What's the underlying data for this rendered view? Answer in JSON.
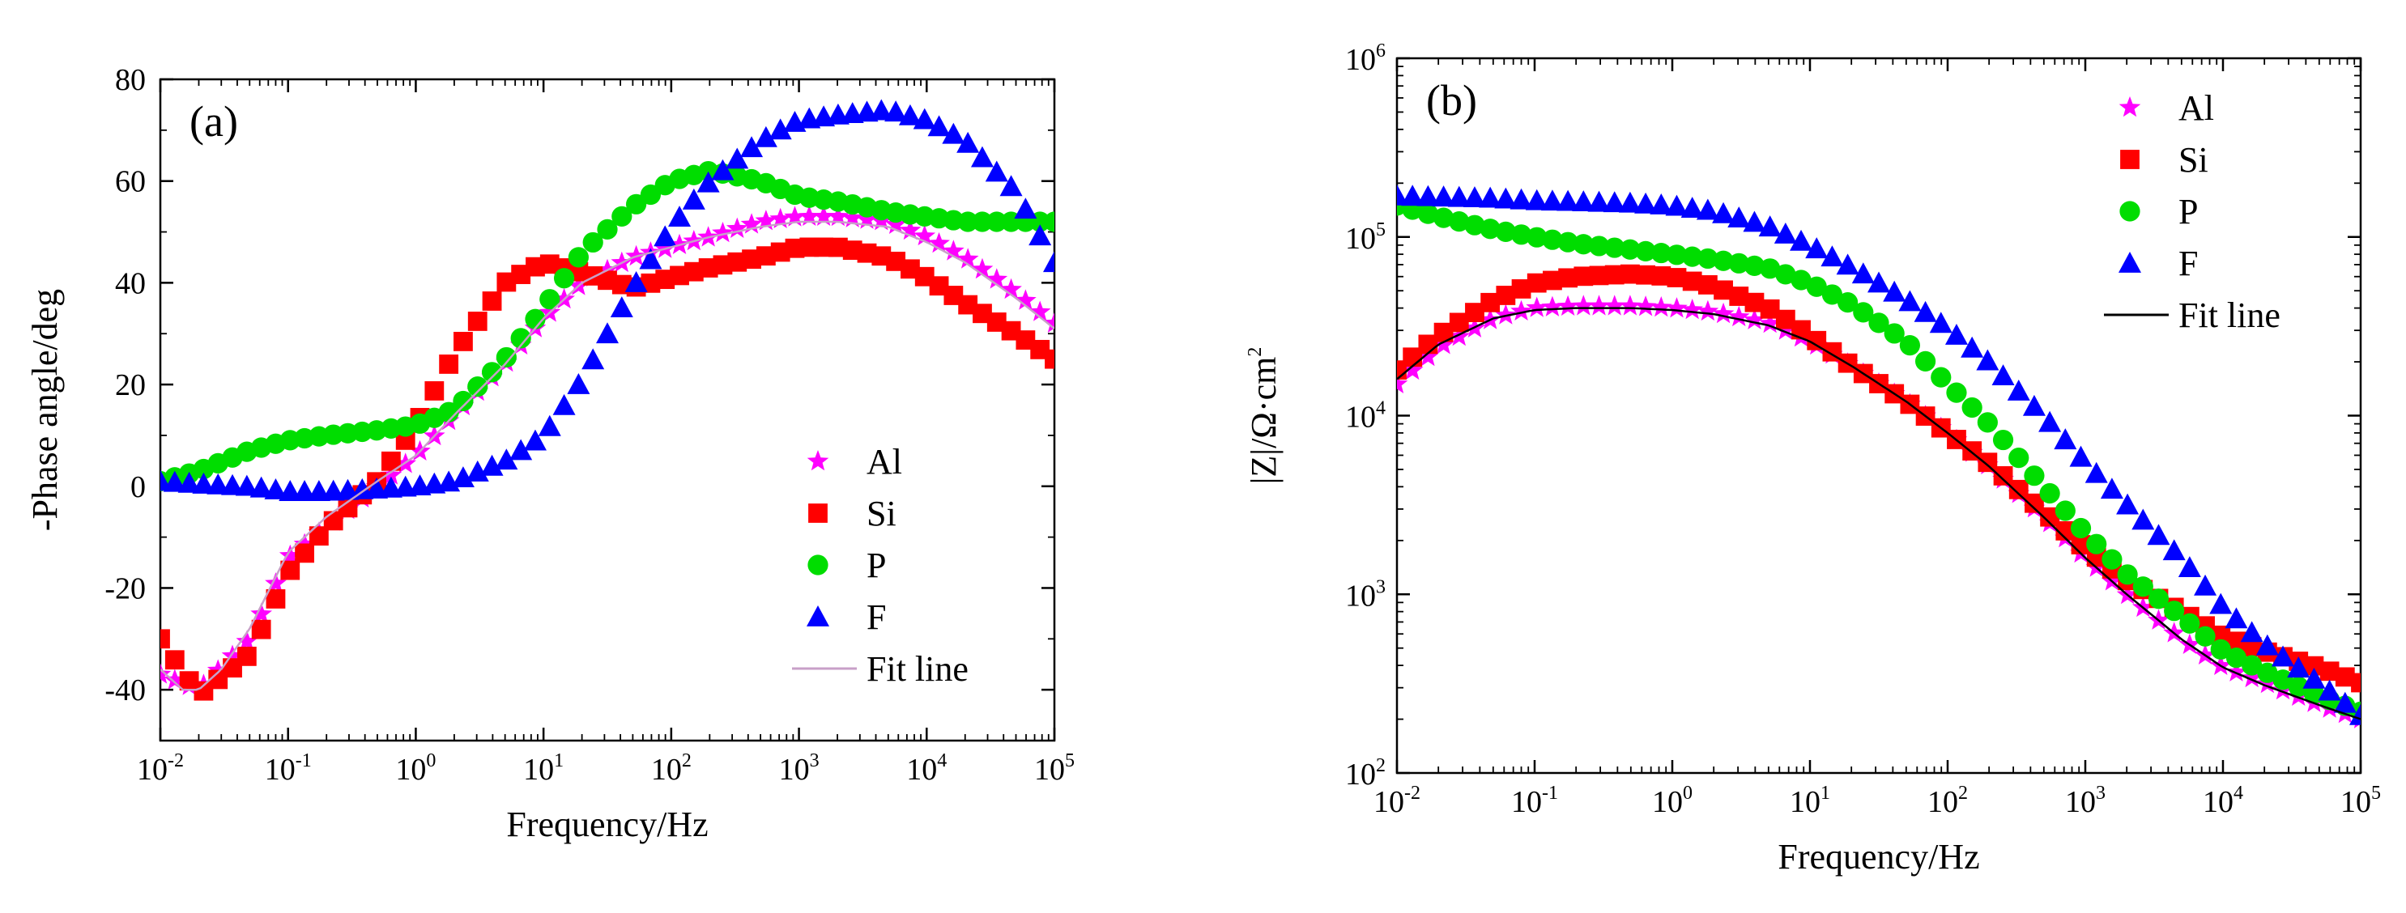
{
  "chart_data": [
    {
      "type": "scatter",
      "panel_label": "(a)",
      "xlabel": "Frequency/Hz",
      "ylabel": "-Phase angle/deg",
      "x_scale": "log",
      "xlim": [
        0.01,
        100000
      ],
      "ylim": [
        -50,
        80
      ],
      "x_ticks": [
        {
          "base": "10",
          "exp": "-2"
        },
        {
          "base": "10",
          "exp": "-1"
        },
        {
          "base": "10",
          "exp": "0"
        },
        {
          "base": "10",
          "exp": "1"
        },
        {
          "base": "10",
          "exp": "2"
        },
        {
          "base": "10",
          "exp": "3"
        },
        {
          "base": "10",
          "exp": "4"
        },
        {
          "base": "10",
          "exp": "5"
        }
      ],
      "y_ticks": [
        "-40",
        "-20",
        "0",
        "20",
        "40",
        "60",
        "80"
      ],
      "grid": false,
      "legend_position": "bottom-right",
      "fit_line_label": "Fit line",
      "fit_line_color": "#c8a0c8",
      "series": [
        {
          "name": "Al",
          "marker": "star",
          "color": "#ff00ff",
          "x": [
            0.01,
            0.02,
            0.05,
            0.1,
            0.2,
            0.5,
            1,
            2,
            5,
            10,
            20,
            50,
            100,
            200,
            500,
            1000,
            2000,
            5000,
            10000,
            20000,
            50000,
            100000
          ],
          "y": [
            -37,
            -40,
            -30,
            -14,
            -8,
            0,
            6,
            14,
            24,
            33,
            40,
            45,
            47,
            49,
            52,
            53,
            53,
            52,
            49,
            45,
            38,
            32
          ]
        },
        {
          "name": "Si",
          "marker": "square",
          "color": "#ff0000",
          "x": [
            0.01,
            0.02,
            0.05,
            0.1,
            0.2,
            0.5,
            1,
            2,
            5,
            10,
            20,
            50,
            100,
            200,
            500,
            1000,
            2000,
            5000,
            10000,
            20000,
            50000,
            100000
          ],
          "y": [
            -30,
            -41,
            -33,
            -17,
            -8,
            1,
            12,
            26,
            40,
            44,
            42,
            39,
            41,
            43,
            45,
            47,
            47,
            45,
            41,
            36,
            30,
            25
          ]
        },
        {
          "name": "P",
          "marker": "circle",
          "color": "#00dd00",
          "x": [
            0.01,
            0.02,
            0.05,
            0.1,
            0.2,
            0.5,
            1,
            2,
            5,
            10,
            20,
            50,
            100,
            200,
            500,
            1000,
            2000,
            5000,
            10000,
            20000,
            50000,
            100000
          ],
          "y": [
            1,
            3,
            7,
            9,
            10,
            11,
            12,
            15,
            25,
            35,
            46,
            55,
            60,
            62,
            60,
            57,
            56,
            54,
            53,
            52,
            52,
            52
          ]
        },
        {
          "name": "F",
          "marker": "triangle",
          "color": "#0000ff",
          "x": [
            0.01,
            0.02,
            0.05,
            0.1,
            0.2,
            0.5,
            1,
            2,
            5,
            10,
            20,
            50,
            100,
            200,
            500,
            1000,
            2000,
            5000,
            10000,
            20000,
            50000,
            100000
          ],
          "y": [
            1,
            0.5,
            0,
            -1,
            -1,
            -0.5,
            0,
            1,
            5,
            10,
            21,
            39,
            51,
            60,
            68,
            72,
            73,
            74,
            72,
            68,
            58,
            44
          ]
        }
      ],
      "fit": {
        "x": [
          0.01,
          0.015,
          0.02,
          0.03,
          0.05,
          0.1,
          0.2,
          0.5,
          1,
          2,
          5,
          10,
          20,
          50,
          100,
          200,
          500,
          1000,
          2000,
          5000,
          10000,
          20000,
          50000,
          100000
        ],
        "y": [
          -36,
          -40,
          -40,
          -36,
          -28,
          -13,
          -6,
          1,
          6,
          14,
          24,
          33,
          40,
          45,
          47,
          49,
          51,
          52,
          52,
          51,
          48,
          44,
          37,
          31
        ]
      }
    },
    {
      "type": "scatter",
      "panel_label": "(b)",
      "xlabel": "Frequency/Hz",
      "ylabel": "|Z|/Ω·cm",
      "ylabel_exp": "2",
      "x_scale": "log",
      "y_scale": "log",
      "xlim": [
        0.01,
        100000
      ],
      "ylim": [
        100,
        1000000
      ],
      "x_ticks": [
        {
          "base": "10",
          "exp": "-2"
        },
        {
          "base": "10",
          "exp": "-1"
        },
        {
          "base": "10",
          "exp": "0"
        },
        {
          "base": "10",
          "exp": "1"
        },
        {
          "base": "10",
          "exp": "2"
        },
        {
          "base": "10",
          "exp": "3"
        },
        {
          "base": "10",
          "exp": "4"
        },
        {
          "base": "10",
          "exp": "5"
        }
      ],
      "y_ticks": [
        {
          "base": "10",
          "exp": "2"
        },
        {
          "base": "10",
          "exp": "3"
        },
        {
          "base": "10",
          "exp": "4"
        },
        {
          "base": "10",
          "exp": "5"
        },
        {
          "base": "10",
          "exp": "6"
        }
      ],
      "grid": false,
      "legend_position": "top-right",
      "fit_line_label": "Fit line",
      "fit_line_color": "#000000",
      "series": [
        {
          "name": "Al",
          "marker": "star",
          "color": "#ff00ff",
          "x": [
            0.01,
            0.02,
            0.05,
            0.1,
            0.2,
            0.5,
            1,
            2,
            5,
            10,
            20,
            50,
            100,
            200,
            500,
            1000,
            2000,
            5000,
            10000,
            20000,
            50000,
            100000
          ],
          "y": [
            15000,
            24000,
            35000,
            40000,
            41000,
            41000,
            40000,
            38000,
            33000,
            26000,
            19000,
            12000,
            8000,
            5200,
            2700,
            1600,
            1000,
            560,
            390,
            320,
            240,
            200
          ]
        },
        {
          "name": "Si",
          "marker": "square",
          "color": "#ff0000",
          "x": [
            0.01,
            0.02,
            0.05,
            0.1,
            0.2,
            0.5,
            1,
            2,
            5,
            10,
            20,
            50,
            100,
            200,
            500,
            1000,
            2000,
            5000,
            10000,
            20000,
            50000,
            100000
          ],
          "y": [
            18000,
            28000,
            44000,
            55000,
            60000,
            62000,
            60000,
            53000,
            40000,
            28000,
            19000,
            12000,
            8000,
            5400,
            2900,
            1800,
            1200,
            800,
            580,
            480,
            390,
            320
          ]
        },
        {
          "name": "P",
          "marker": "circle",
          "color": "#00dd00",
          "x": [
            0.01,
            0.02,
            0.05,
            0.1,
            0.2,
            0.5,
            1,
            2,
            5,
            10,
            20,
            50,
            100,
            200,
            500,
            1000,
            2000,
            5000,
            10000,
            20000,
            50000,
            100000
          ],
          "y": [
            150000,
            130000,
            110000,
            100000,
            92000,
            85000,
            80000,
            75000,
            67000,
            55000,
            42000,
            26000,
            15000,
            9000,
            4000,
            2200,
            1300,
            750,
            480,
            370,
            270,
            220
          ]
        },
        {
          "name": "F",
          "marker": "triangle",
          "color": "#0000ff",
          "x": [
            0.01,
            0.02,
            0.05,
            0.1,
            0.2,
            0.5,
            1,
            2,
            5,
            10,
            20,
            50,
            100,
            200,
            500,
            1000,
            2000,
            5000,
            10000,
            20000,
            50000,
            100000
          ],
          "y": [
            170000,
            168000,
            165000,
            160000,
            158000,
            155000,
            150000,
            140000,
            115000,
            90000,
            68000,
            45000,
            31000,
            20000,
            10000,
            5500,
            3200,
            1600,
            850,
            530,
            320,
            210
          ]
        }
      ],
      "fit": {
        "x": [
          0.01,
          0.02,
          0.05,
          0.1,
          0.2,
          0.5,
          1,
          2,
          5,
          10,
          20,
          50,
          100,
          200,
          500,
          1000,
          2000,
          5000,
          10000,
          20000,
          50000,
          100000
        ],
        "y": [
          16000,
          25000,
          35000,
          39000,
          40000,
          40000,
          39000,
          37000,
          32000,
          26000,
          19000,
          12000,
          8000,
          5200,
          2700,
          1600,
          1000,
          560,
          390,
          310,
          240,
          200
        ]
      }
    }
  ]
}
